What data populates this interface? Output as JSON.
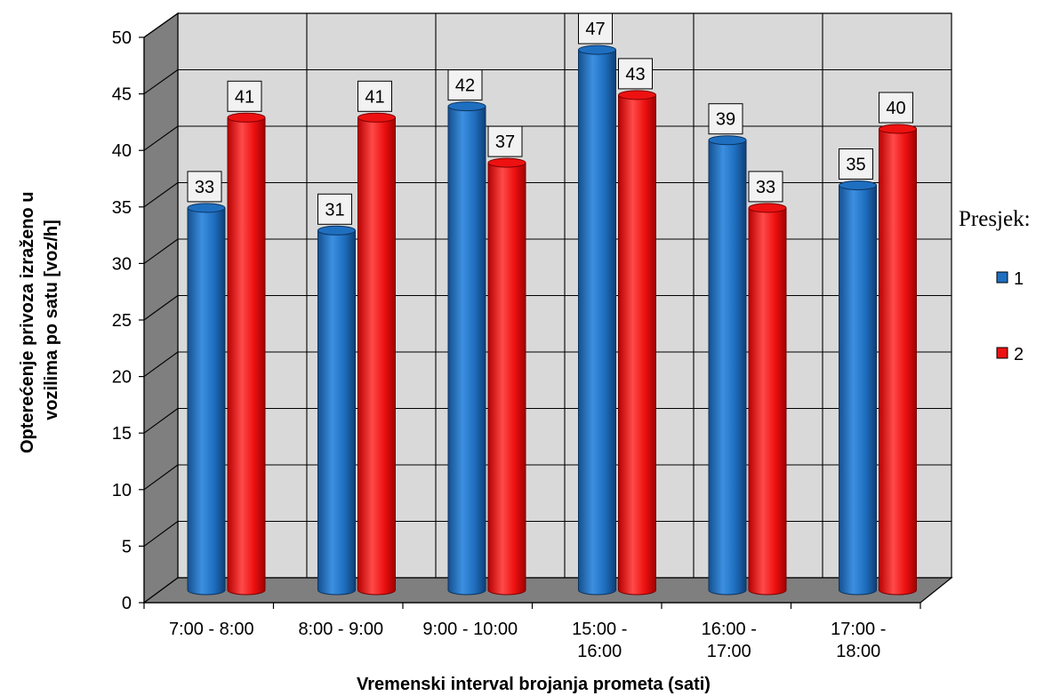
{
  "chart_data": {
    "type": "bar",
    "categories": [
      [
        "7:00 - 8:00"
      ],
      [
        "8:00 - 9:00"
      ],
      [
        "9:00 - 10:00"
      ],
      [
        "15:00 -",
        "16:00"
      ],
      [
        "16:00 -",
        "17:00"
      ],
      [
        "17:00 -",
        "18:00"
      ]
    ],
    "series": [
      {
        "name": "1",
        "values": [
          33,
          31,
          42,
          47,
          39,
          35
        ],
        "color": "#1f6fc0"
      },
      {
        "name": "2",
        "values": [
          41,
          41,
          37,
          43,
          33,
          40
        ],
        "color": "#ee1111"
      }
    ],
    "xlabel": "Vremenski interval brojanja prometa (sati)",
    "ylabel": [
      "Opterećenje privoza  izraženo u",
      "vozilima po satu [voz/h]"
    ],
    "ylim": [
      0,
      50
    ],
    "yticks": [
      "0",
      "5",
      "10",
      "15",
      "20",
      "25",
      "30",
      "35",
      "40",
      "45",
      "50"
    ],
    "legend_title": "Presjek:",
    "legend_position": "right",
    "grid": true,
    "style": "3d-cylinder"
  }
}
